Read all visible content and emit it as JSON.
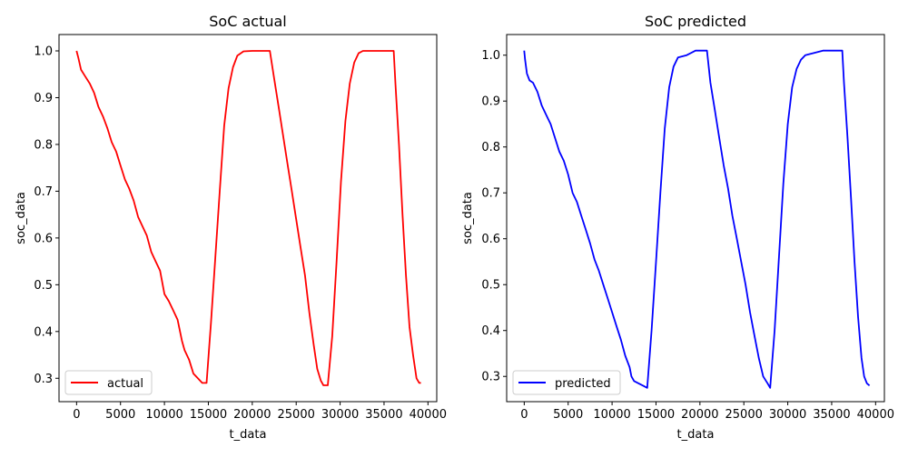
{
  "chart_data": [
    {
      "type": "line",
      "title": "SoC actual",
      "xlabel": "t_data",
      "ylabel": "soc_data",
      "xlim": [
        -2000,
        41000
      ],
      "ylim": [
        0.25,
        1.035
      ],
      "xticks": [
        0,
        5000,
        10000,
        15000,
        20000,
        25000,
        30000,
        35000,
        40000
      ],
      "yticks": [
        0.3,
        0.4,
        0.5,
        0.6,
        0.7,
        0.8,
        0.9,
        1.0
      ],
      "xtick_labels": [
        "0",
        "5000",
        "10000",
        "15000",
        "20000",
        "25000",
        "30000",
        "35000",
        "40000"
      ],
      "ytick_labels": [
        "0.3",
        "0.4",
        "0.5",
        "0.6",
        "0.7",
        "0.8",
        "0.9",
        "1.0"
      ],
      "grid": false,
      "legend": "lower-left",
      "series": [
        {
          "name": "actual",
          "color": "#ff0000",
          "x": [
            0,
            200,
            500,
            1000,
            1500,
            2000,
            2500,
            3000,
            3500,
            4000,
            4500,
            5000,
            5500,
            6000,
            6500,
            7000,
            7500,
            8000,
            8500,
            9000,
            9500,
            10000,
            10500,
            11000,
            11500,
            12000,
            12300,
            12800,
            13300,
            13800,
            14300,
            14800,
            15300,
            15800,
            16300,
            16800,
            17300,
            17800,
            18300,
            19000,
            20000,
            20800,
            21000,
            21500,
            22000,
            22500,
            23000,
            23500,
            24000,
            24500,
            25000,
            25500,
            26000,
            26500,
            27000,
            27400,
            27800,
            28100,
            28600,
            29100,
            29600,
            30100,
            30600,
            31100,
            31600,
            32100,
            32600,
            33500,
            34500,
            35500,
            36100,
            36300,
            36700,
            37100,
            37500,
            37900,
            38300,
            38700,
            39000,
            39200
          ],
          "values": [
            1.0,
            0.985,
            0.96,
            0.945,
            0.93,
            0.91,
            0.88,
            0.86,
            0.835,
            0.805,
            0.785,
            0.755,
            0.725,
            0.705,
            0.68,
            0.645,
            0.625,
            0.605,
            0.57,
            0.55,
            0.53,
            0.48,
            0.465,
            0.445,
            0.425,
            0.38,
            0.36,
            0.34,
            0.31,
            0.3,
            0.29,
            0.29,
            0.42,
            0.56,
            0.7,
            0.84,
            0.92,
            0.965,
            0.99,
            0.999,
            1.0,
            1.0,
            1.0,
            1.0,
            1.0,
            0.94,
            0.88,
            0.82,
            0.76,
            0.7,
            0.64,
            0.58,
            0.52,
            0.44,
            0.37,
            0.32,
            0.295,
            0.285,
            0.285,
            0.39,
            0.55,
            0.72,
            0.85,
            0.93,
            0.975,
            0.995,
            1.0,
            1.0,
            1.0,
            1.0,
            1.0,
            0.93,
            0.8,
            0.65,
            0.52,
            0.41,
            0.35,
            0.3,
            0.29,
            0.29
          ]
        }
      ]
    },
    {
      "type": "line",
      "title": "SoC predicted",
      "xlabel": "t_data",
      "ylabel": "soc_data",
      "xlim": [
        -2000,
        41000
      ],
      "ylim": [
        0.245,
        1.045
      ],
      "xticks": [
        0,
        5000,
        10000,
        15000,
        20000,
        25000,
        30000,
        35000,
        40000
      ],
      "yticks": [
        0.3,
        0.4,
        0.5,
        0.6,
        0.7,
        0.8,
        0.9,
        1.0
      ],
      "xtick_labels": [
        "0",
        "5000",
        "10000",
        "15000",
        "20000",
        "25000",
        "30000",
        "35000",
        "40000"
      ],
      "ytick_labels": [
        "0.3",
        "0.4",
        "0.5",
        "0.6",
        "0.7",
        "0.8",
        "0.9",
        "1.0"
      ],
      "grid": false,
      "legend": "lower-left",
      "series": [
        {
          "name": "predicted",
          "color": "#0000ff",
          "x": [
            0,
            100,
            300,
            600,
            1000,
            1500,
            2000,
            2500,
            3000,
            3500,
            4000,
            4500,
            5000,
            5500,
            6000,
            6500,
            7000,
            7500,
            8000,
            8500,
            9000,
            9500,
            10000,
            10500,
            11000,
            11500,
            12000,
            12200,
            12500,
            13000,
            13500,
            14000,
            14500,
            15000,
            15500,
            16000,
            16500,
            17000,
            17500,
            18500,
            19500,
            20500,
            20800,
            21200,
            21700,
            22200,
            22700,
            23200,
            23700,
            24200,
            24700,
            25200,
            25700,
            26200,
            26700,
            27200,
            27700,
            28000,
            28500,
            29000,
            29500,
            30000,
            30500,
            31000,
            31500,
            32000,
            33000,
            34000,
            35000,
            36200,
            36400,
            36800,
            37200,
            37600,
            38000,
            38400,
            38700,
            39000,
            39300
          ],
          "values": [
            1.01,
            0.99,
            0.96,
            0.945,
            0.94,
            0.92,
            0.89,
            0.87,
            0.85,
            0.82,
            0.79,
            0.77,
            0.74,
            0.7,
            0.68,
            0.65,
            0.62,
            0.59,
            0.555,
            0.53,
            0.5,
            0.47,
            0.44,
            0.41,
            0.38,
            0.345,
            0.32,
            0.3,
            0.29,
            0.285,
            0.28,
            0.275,
            0.4,
            0.55,
            0.7,
            0.84,
            0.93,
            0.975,
            0.995,
            1.0,
            1.01,
            1.01,
            1.01,
            0.94,
            0.88,
            0.82,
            0.76,
            0.71,
            0.65,
            0.6,
            0.55,
            0.5,
            0.44,
            0.39,
            0.34,
            0.3,
            0.285,
            0.275,
            0.4,
            0.56,
            0.72,
            0.85,
            0.93,
            0.97,
            0.99,
            1.0,
            1.005,
            1.01,
            1.01,
            1.01,
            0.94,
            0.82,
            0.69,
            0.55,
            0.43,
            0.34,
            0.3,
            0.285,
            0.28
          ]
        }
      ]
    }
  ]
}
